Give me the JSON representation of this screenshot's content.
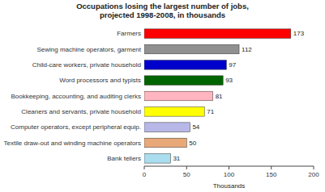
{
  "chart_data": {
    "type": "bar",
    "orientation": "horizontal",
    "title": "Occupations losing the largest number of jobs,\nprojected 1998-2008, in thousands",
    "categories": [
      "Bank tellers",
      "Textile draw-out and winding machine operators",
      "Computer operators, except peripheral equip.",
      "Cleaners and servants, private household",
      "Bookkeeping, accounting, and auditing clerks",
      "Word processors and typists",
      "Child-care workers, private household",
      "Sewing machine operators, garment",
      "Farmers"
    ],
    "values": [
      31,
      50,
      54,
      71,
      81,
      93,
      97,
      112,
      173
    ],
    "colors": [
      "#aaddee",
      "#e8a878",
      "#b8b8e8",
      "#ffff00",
      "#ffb6c1",
      "#006400",
      "#0000cc",
      "#909090",
      "#ff0000"
    ],
    "xlabel": "Thousands",
    "xlim": [
      0,
      200
    ],
    "xticks": [
      0,
      50,
      100,
      150,
      200
    ],
    "data_labels": true,
    "grid": false
  }
}
